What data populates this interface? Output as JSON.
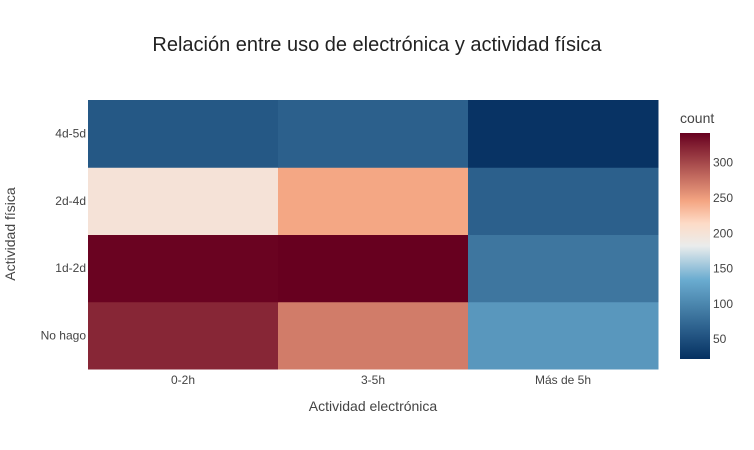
{
  "chart_data": {
    "type": "heatmap",
    "title": "Relación entre uso de electrónica y actividad física",
    "xlabel": "Actividad electrónica",
    "ylabel": "Actividad física",
    "x_categories": [
      "0-2h",
      "3-5h",
      "Más de 5h"
    ],
    "y_categories": [
      "No hago",
      "1d-2d",
      "2d-4d",
      "4d-5d"
    ],
    "z": [
      [
        320,
        270,
        115
      ],
      [
        340,
        342,
        85
      ],
      [
        200,
        245,
        65
      ],
      [
        58,
        65,
        25
      ]
    ],
    "colorbar": {
      "title": "count",
      "ticks": [
        50,
        100,
        150,
        200,
        250,
        300
      ],
      "zmin": 22,
      "zmax": 342
    },
    "colorscale": "RdBu"
  }
}
